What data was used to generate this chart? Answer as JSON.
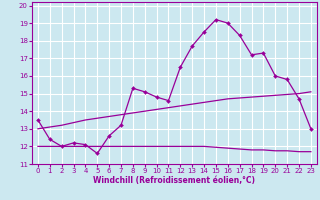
{
  "x": [
    0,
    1,
    2,
    3,
    4,
    5,
    6,
    7,
    8,
    9,
    10,
    11,
    12,
    13,
    14,
    15,
    16,
    17,
    18,
    19,
    20,
    21,
    22,
    23
  ],
  "line1": [
    13.5,
    12.4,
    12.0,
    12.2,
    12.1,
    11.6,
    12.6,
    13.2,
    15.3,
    15.1,
    14.8,
    14.6,
    16.5,
    17.7,
    18.5,
    19.2,
    19.0,
    18.3,
    17.2,
    17.3,
    16.0,
    15.8,
    14.7,
    13.0
  ],
  "line2": [
    13.0,
    13.1,
    13.2,
    13.35,
    13.5,
    13.6,
    13.7,
    13.8,
    13.9,
    14.0,
    14.1,
    14.2,
    14.3,
    14.4,
    14.5,
    14.6,
    14.7,
    14.75,
    14.8,
    14.85,
    14.9,
    14.95,
    15.0,
    15.1
  ],
  "line3": [
    12.0,
    12.0,
    12.0,
    12.0,
    12.0,
    12.0,
    12.0,
    12.0,
    12.0,
    12.0,
    12.0,
    12.0,
    12.0,
    12.0,
    12.0,
    11.95,
    11.9,
    11.85,
    11.8,
    11.8,
    11.75,
    11.75,
    11.7,
    11.7
  ],
  "line_color": "#990099",
  "bg_color": "#cce8f0",
  "grid_color": "#ffffff",
  "xlabel": "Windchill (Refroidissement éolien,°C)",
  "xlim": [
    -0.5,
    23.5
  ],
  "ylim": [
    11,
    20.2
  ],
  "yticks": [
    11,
    12,
    13,
    14,
    15,
    16,
    17,
    18,
    19,
    20
  ],
  "xticks": [
    0,
    1,
    2,
    3,
    4,
    5,
    6,
    7,
    8,
    9,
    10,
    11,
    12,
    13,
    14,
    15,
    16,
    17,
    18,
    19,
    20,
    21,
    22,
    23
  ],
  "tick_fontsize": 5.0,
  "xlabel_fontsize": 5.5
}
